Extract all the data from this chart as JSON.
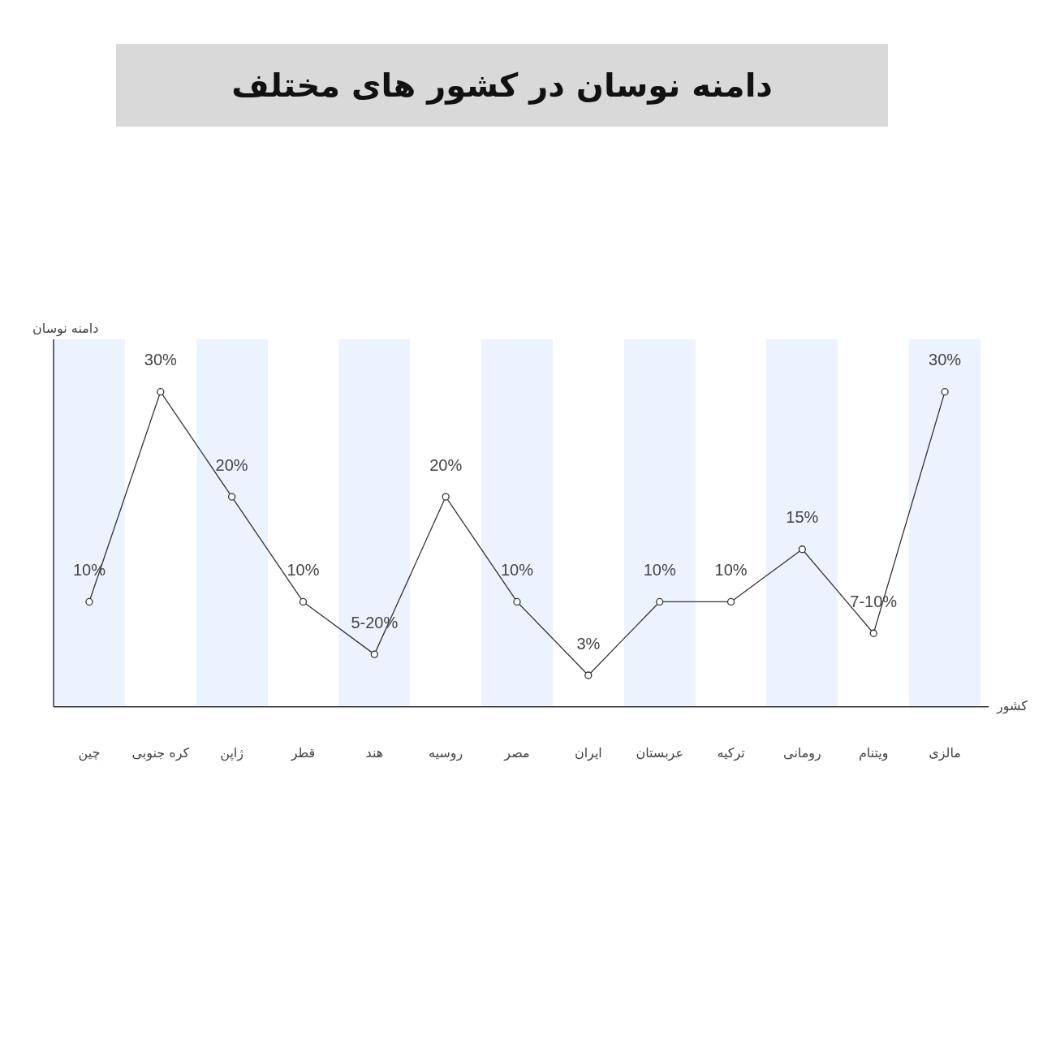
{
  "chart_data": {
    "type": "line",
    "title": "دامنه نوسان در کشور های مختلف",
    "xlabel": "کشور",
    "ylabel": "دامنه نوسان",
    "categories": [
      "چین",
      "کره جنوبی",
      "ژاپن",
      "قطر",
      "هند",
      "روسیه",
      "مصر",
      "ایران",
      "عربستان",
      "ترکیه",
      "رومانی",
      "ویتنام",
      "مالزی"
    ],
    "series": [
      {
        "color": "#333333",
        "values": [
          10,
          30,
          20,
          10,
          5,
          20,
          10,
          3,
          10,
          10,
          15,
          7,
          30
        ],
        "value_labels": [
          "10%",
          "30%",
          "20%",
          "10%",
          "5-20%",
          "20%",
          "10%",
          "3%",
          "10%",
          "10%",
          "15%",
          "7-10%",
          "30%"
        ]
      }
    ],
    "tick_labels": "x",
    "marker": "circle",
    "line_style": "solid",
    "grid": false,
    "legend": false
  }
}
